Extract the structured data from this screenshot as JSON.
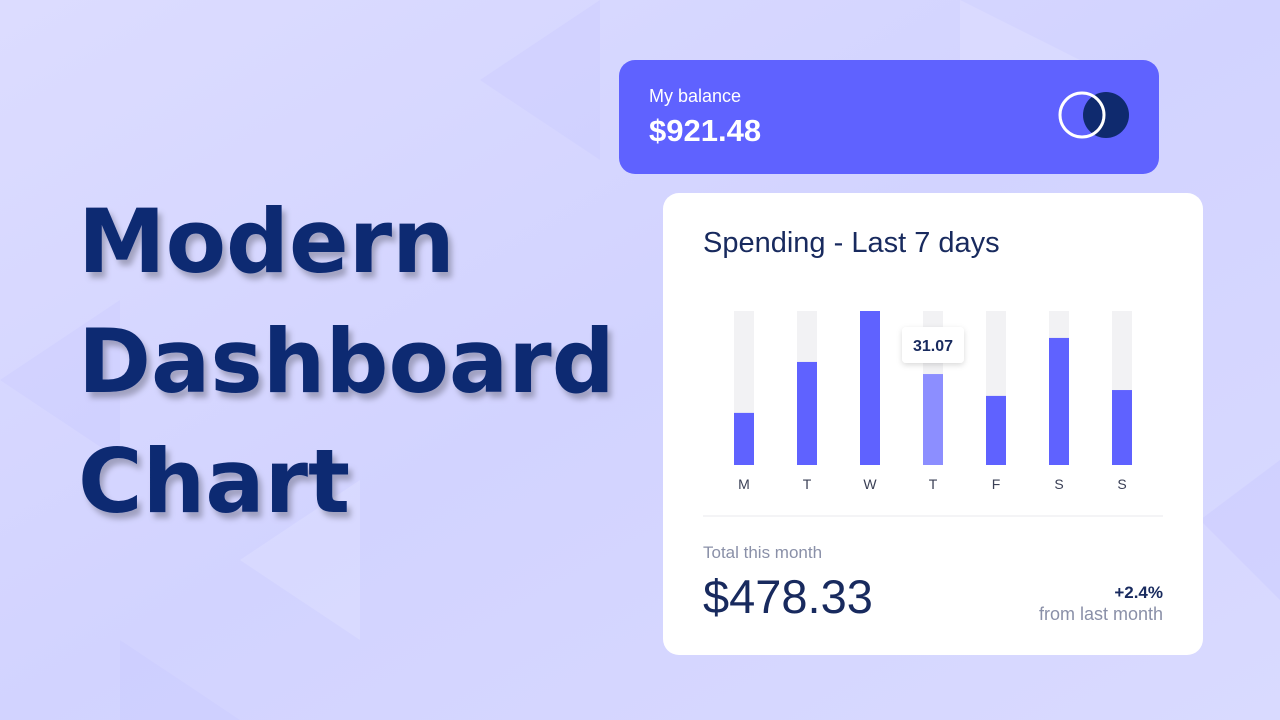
{
  "headline": {
    "lines": [
      "Modern",
      "Dashboard",
      "Chart"
    ]
  },
  "balance": {
    "label": "My balance",
    "amount": "$921.48"
  },
  "chart_data": {
    "type": "bar",
    "title": "Spending - Last 7 days",
    "categories": [
      "M",
      "T",
      "W",
      "T",
      "F",
      "S",
      "S"
    ],
    "values": [
      17.8,
      35.2,
      52.6,
      31.07,
      23.6,
      43.4,
      25.6
    ],
    "color": "#5f62ff",
    "hover_index": 3,
    "hover_color": "#8c8eff",
    "track_color": "#f2f2f4"
  },
  "summary": {
    "label": "Total this month",
    "amount": "$478.33",
    "change": "+2.4%",
    "change_note": "from last month"
  }
}
